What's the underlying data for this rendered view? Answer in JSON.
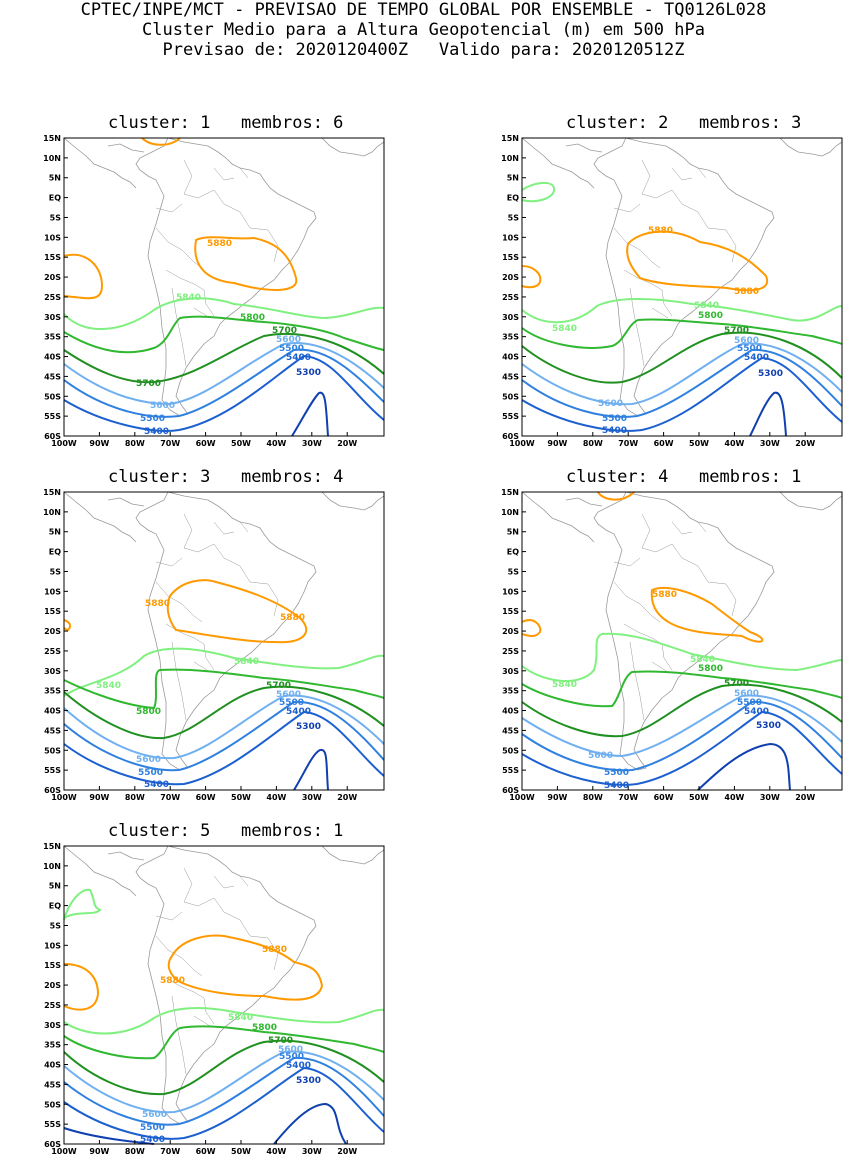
{
  "header": {
    "line1": "CPTEC/INPE/MCT - PREVISAO DE TEMPO GLOBAL POR ENSEMBLE - TQ0126L028",
    "line2": "Cluster Medio para a Altura Geopotencial (m) em 500 hPa",
    "line3": "Previsao de: 2020120400Z   Valido para: 2020120512Z"
  },
  "axes": {
    "lat_labels": [
      "15N",
      "10N",
      "5N",
      "EQ",
      "5S",
      "10S",
      "15S",
      "20S",
      "25S",
      "30S",
      "35S",
      "40S",
      "45S",
      "50S",
      "55S",
      "60S"
    ],
    "lon_labels": [
      "100W",
      "90W",
      "80W",
      "70W",
      "60W",
      "50W",
      "40W",
      "30W",
      "20W"
    ]
  },
  "colors": {
    "c5880": "#ff9900",
    "c5840": "#80f080",
    "c5800": "#30b830",
    "c5700": "#209020",
    "c5600": "#70b0f0",
    "c5500": "#3080e0",
    "c5400": "#1c60d0",
    "c5300": "#1040b0",
    "map": "#9a9a9a"
  },
  "panels": [
    {
      "title": "cluster: 1   membros: 6",
      "labels": {
        "l5880": "5880",
        "l5840": "5840",
        "l5800": "5800",
        "l5700a": "5700",
        "l5700b": "5700",
        "l5600a": "5600",
        "l5600b": "5600",
        "l5500a": "5500",
        "l5500b": "5500",
        "l5400a": "5400",
        "l5400b": "5400",
        "l5300": "5300"
      }
    },
    {
      "title": "cluster: 2   membros: 3",
      "labels": {
        "l5880a": "5880",
        "l5880b": "5880",
        "l5840a": "5840",
        "l5840b": "5840",
        "l5800": "5800",
        "l5700": "5700",
        "l5600a": "5600",
        "l5600b": "5600",
        "l5500a": "5500",
        "l5500b": "5500",
        "l5400a": "5400",
        "l5400b": "5400",
        "l5300": "5300"
      }
    },
    {
      "title": "cluster: 3   membros: 4",
      "labels": {
        "l5880a": "5880",
        "l5880b": "5880",
        "l5840a": "5840",
        "l5840b": "5840",
        "l5800": "5800",
        "l5700": "5700",
        "l5600a": "5600",
        "l5600b": "5600",
        "l5500a": "5500",
        "l5500b": "5500",
        "l5400a": "5400",
        "l5400b": "5400",
        "l5300": "5300"
      }
    },
    {
      "title": "cluster: 4   membros: 1",
      "labels": {
        "l5880": "5880",
        "l5840a": "5840",
        "l5840b": "5840",
        "l5800": "5800",
        "l5700": "5700",
        "l5600a": "5600",
        "l5600b": "5600",
        "l5500a": "5500",
        "l5500b": "5500",
        "l5400a": "5400",
        "l5400b": "5400",
        "l5300": "5300"
      }
    },
    {
      "title": "cluster: 5   membros: 1",
      "labels": {
        "l5880a": "5880",
        "l5880b": "5880",
        "l5840": "5840",
        "l5800": "5800",
        "l5700": "5700",
        "l5600a": "5600",
        "l5600b": "5600",
        "l5500a": "5500",
        "l5500b": "5500",
        "l5400a": "5400",
        "l5400b": "5400",
        "l5300": "5300"
      }
    }
  ]
}
